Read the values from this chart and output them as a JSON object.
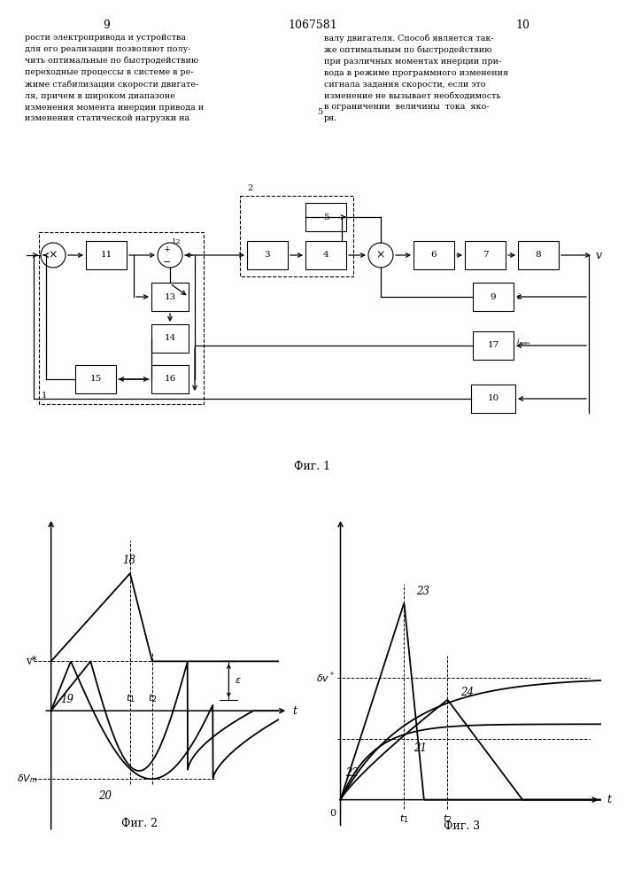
{
  "bg_color": "#ffffff",
  "page_left": "9",
  "page_center": "1067581",
  "page_right": "10",
  "text_left": "рости электропривода и устройства\nдля его реализации позволяют полу-\nчить оптимальные по быстродействию\nпереходные процессы в системе в ре-\nжиме стабилизации скорости двигате-\nля, причем в широком диапазоне\nизменения момента инерции привода и\nизменения статической нагрузки на",
  "text_right": "валу двигателя. Способ является так-\nже оптимальным по быстродействию\nпри различных моментах инерции при-\nвода в режиме программного изменения\nсигнала задания скорости, если это\nизменение не вызывает необходимость\nв ограничении  величины  тока  яко-\nря.",
  "fig1_label": "Фиг. 1",
  "fig2_label": "Фиг. 2",
  "fig3_label": "Фиг. 3",
  "g2_t1": 1.6,
  "g2_t2": 2.05,
  "g2_vstar": 0.45,
  "g2_dvm": -0.62,
  "g2_peak": 1.25,
  "g3_t1": 1.1,
  "g3_t2": 1.85,
  "g3_dvstar": 0.65,
  "g3_peak23": 1.05
}
